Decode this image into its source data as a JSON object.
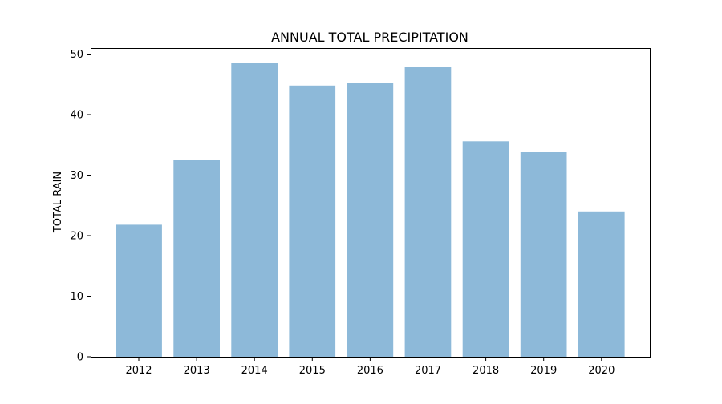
{
  "chart_data": {
    "type": "bar",
    "title": "ANNUAL TOTAL PRECIPITATION",
    "xlabel": "",
    "ylabel": "TOTAL RAIN",
    "categories": [
      "2012",
      "2013",
      "2014",
      "2015",
      "2016",
      "2017",
      "2018",
      "2019",
      "2020"
    ],
    "values": [
      21.8,
      32.5,
      48.5,
      44.8,
      45.2,
      47.9,
      35.6,
      33.8,
      24.0
    ],
    "ylim": [
      0,
      51
    ],
    "yticks": [
      0,
      10,
      20,
      30,
      40,
      50
    ],
    "bar_color": "#8db9d9",
    "grid": false,
    "legend": "none"
  }
}
